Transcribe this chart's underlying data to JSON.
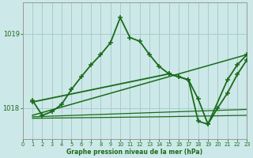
{
  "bg_color": "#cce8e8",
  "grid_color": "#aacccc",
  "line_color": "#1a6b1a",
  "xlabel": "Graphe pression niveau de la mer (hPa)",
  "xlim": [
    0,
    23
  ],
  "ylim": [
    1017.58,
    1019.42
  ],
  "yticks": [
    1018,
    1019
  ],
  "xticks": [
    0,
    1,
    2,
    3,
    4,
    5,
    6,
    7,
    8,
    9,
    10,
    11,
    12,
    13,
    14,
    15,
    16,
    17,
    18,
    19,
    20,
    21,
    22,
    23
  ],
  "curve_main_x": [
    1,
    2,
    3,
    4,
    5,
    6,
    7,
    8,
    9,
    10,
    11,
    12,
    13,
    14,
    15,
    16,
    17,
    18,
    19,
    20,
    21,
    22,
    23
  ],
  "curve_main_y": [
    1018.1,
    1017.9,
    1017.95,
    1018.05,
    1018.25,
    1018.42,
    1018.58,
    1018.72,
    1018.88,
    1019.22,
    1018.95,
    1018.9,
    1018.72,
    1018.56,
    1018.46,
    1018.42,
    1018.38,
    1017.82,
    1017.78,
    1018.0,
    1018.2,
    1018.45,
    1018.65
  ],
  "curve2_x": [
    1,
    15,
    16,
    17,
    18,
    19,
    21,
    22,
    23
  ],
  "curve2_y": [
    1018.08,
    1018.46,
    1018.42,
    1018.38,
    1018.12,
    1017.78,
    1018.38,
    1018.58,
    1018.72
  ],
  "diag_line_x": [
    1,
    23
  ],
  "diag_line_y": [
    1017.9,
    1018.72
  ],
  "flat_line1_x": [
    1,
    14,
    23
  ],
  "flat_line1_y": [
    1017.88,
    1017.94,
    1017.98
  ],
  "flat_line2_x": [
    1,
    14,
    23
  ],
  "flat_line2_y": [
    1017.86,
    1017.88,
    1017.9
  ]
}
